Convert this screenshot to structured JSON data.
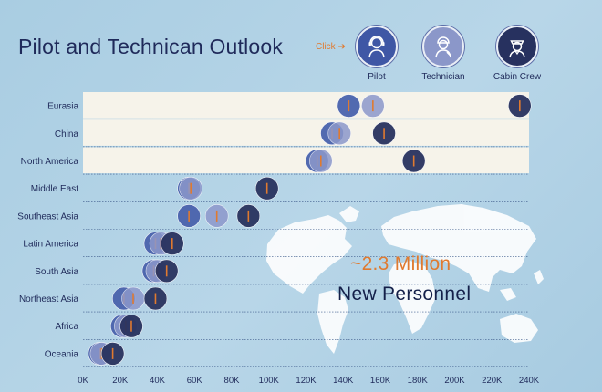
{
  "title": "Pilot and Technican Outlook",
  "click_hint": "Click",
  "personas": [
    {
      "label": "Pilot",
      "icon": "pilot-icon"
    },
    {
      "label": "Technician",
      "icon": "technician-icon"
    },
    {
      "label": "Cabin Crew",
      "icon": "cabin-crew-icon"
    }
  ],
  "headline": "~2.3 Million",
  "subline": "New Personnel",
  "colors": {
    "pilot": "#4a63ad",
    "technician": "#8c98cb",
    "cabin_crew": "#29335f",
    "accent": "#e07a2f",
    "band": "#f6f3ea"
  },
  "chart_data": {
    "type": "scatter",
    "categories": [
      "Eurasia",
      "China",
      "North America",
      "Middle East",
      "Southeast Asia",
      "Latin America",
      "South Asia",
      "Northeast Asia",
      "Africa",
      "Oceania"
    ],
    "series": [
      {
        "name": "Pilot",
        "values": [
          143000,
          134000,
          126000,
          57000,
          57000,
          39000,
          38000,
          22000,
          21000,
          9000
        ]
      },
      {
        "name": "Technician",
        "values": [
          156000,
          138000,
          128000,
          58000,
          72000,
          42000,
          40000,
          27000,
          23000,
          10000
        ]
      },
      {
        "name": "Cabin Crew",
        "values": [
          235000,
          162000,
          178000,
          99000,
          89000,
          48000,
          45000,
          39000,
          26000,
          16000
        ]
      }
    ],
    "xticks": [
      "0K",
      "20K",
      "40K",
      "60K",
      "80K",
      "100K",
      "120K",
      "140K",
      "160K",
      "180K",
      "200K",
      "220K",
      "240K"
    ],
    "xlim": [
      0,
      240000
    ],
    "xlabel": "",
    "ylabel": ""
  }
}
